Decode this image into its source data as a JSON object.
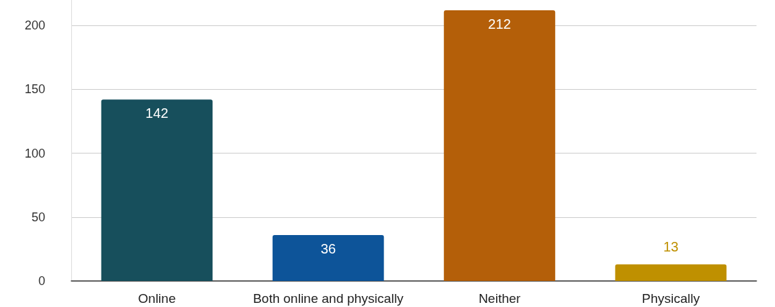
{
  "chart_data": {
    "type": "bar",
    "categories": [
      "Online",
      "Both online and physically",
      "Neither",
      "Physically"
    ],
    "values": [
      142,
      36,
      212,
      13
    ],
    "colors": [
      "#174f5c",
      "#0d5499",
      "#b45f09",
      "#bf9000"
    ],
    "ylim": [
      0,
      220
    ],
    "yticks": [
      0,
      50,
      100,
      150,
      200
    ],
    "grid": "y",
    "data_labels": true
  }
}
